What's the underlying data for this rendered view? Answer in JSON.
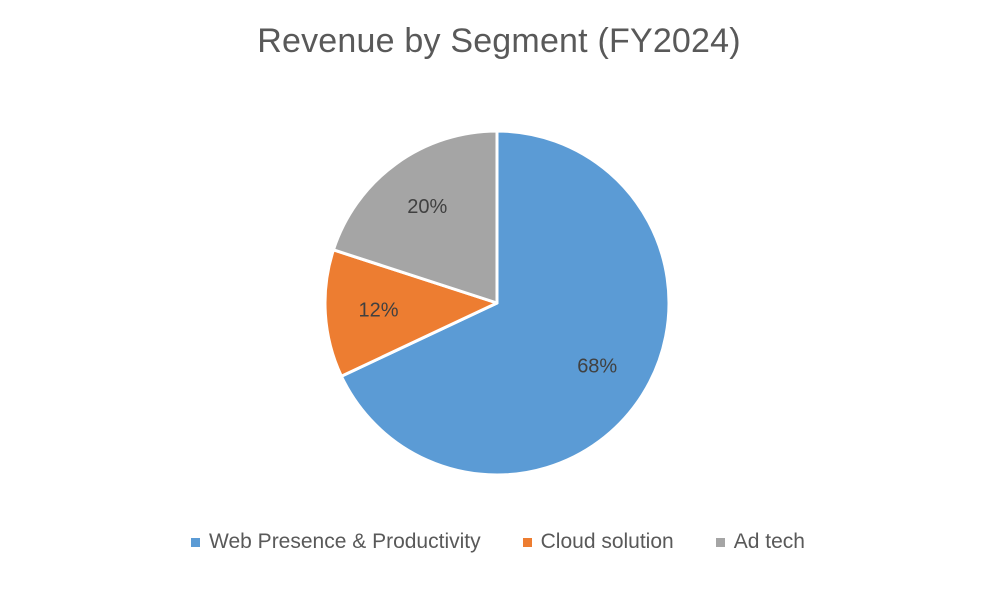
{
  "chart_data": {
    "type": "pie",
    "title": "Revenue by Segment (FY2024)",
    "slices": [
      {
        "name": "Web Presence & Productivity",
        "value": 68,
        "label": "68%",
        "color": "#5B9BD5"
      },
      {
        "name": "Cloud solution",
        "value": 12,
        "label": "12%",
        "color": "#ED7D31"
      },
      {
        "name": "Ad tech",
        "value": 20,
        "label": "20%",
        "color": "#A5A5A5"
      }
    ],
    "start_angle_deg": 0,
    "direction": "clockwise",
    "legend_position": "bottom",
    "data_label_color": "#404040"
  }
}
